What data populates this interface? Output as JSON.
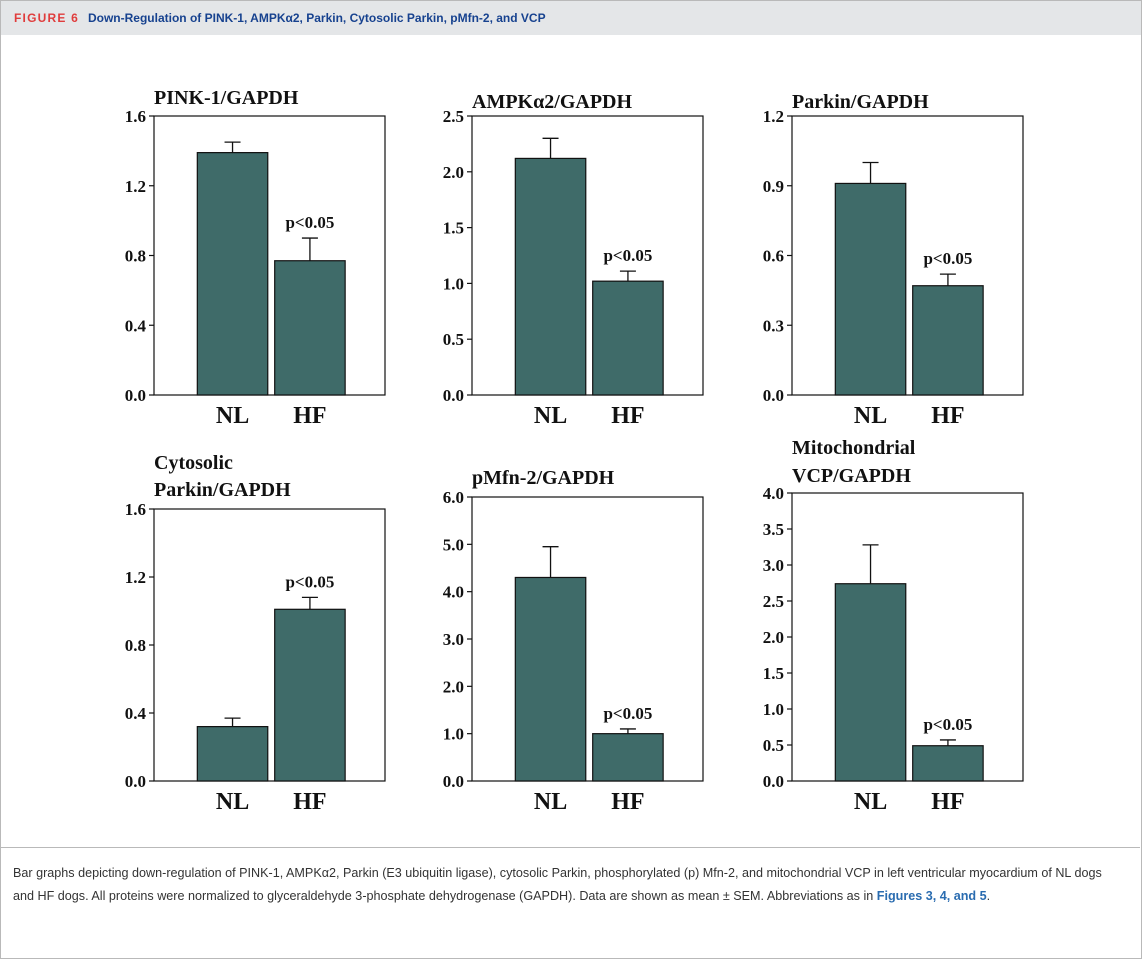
{
  "header": {
    "figure_label": "FIGURE 6",
    "title": "Down-Regulation of PINK-1, AMPKα2, Parkin, Cytosolic Parkin, pMfn-2, and VCP"
  },
  "colors": {
    "bar": "#3f6b69",
    "header_bg": "#e4e6e8",
    "label_red": "#e03c3c",
    "title_blue": "#17428f",
    "link_blue": "#2a6cb0"
  },
  "chart_data": [
    {
      "type": "bar",
      "title": [
        "PINK-1/GAPDH"
      ],
      "categories": [
        "NL",
        "HF"
      ],
      "values": [
        1.39,
        0.77
      ],
      "errors": [
        0.06,
        0.13
      ],
      "ylim": [
        0,
        1.6
      ],
      "yticks": [
        "0.0",
        "0.4",
        "0.8",
        "1.2",
        "1.6"
      ],
      "annotation": "p<0.05",
      "grid": false
    },
    {
      "type": "bar",
      "title": [
        "AMPKα2/GAPDH"
      ],
      "categories": [
        "NL",
        "HF"
      ],
      "values": [
        2.12,
        1.02
      ],
      "errors": [
        0.18,
        0.09
      ],
      "ylim": [
        0,
        2.5
      ],
      "yticks": [
        "0.0",
        "0.5",
        "1.0",
        "1.5",
        "2.0",
        "2.5"
      ],
      "annotation": "p<0.05",
      "grid": false
    },
    {
      "type": "bar",
      "title": [
        "Parkin/GAPDH"
      ],
      "categories": [
        "NL",
        "HF"
      ],
      "values": [
        0.91,
        0.47
      ],
      "errors": [
        0.09,
        0.05
      ],
      "ylim": [
        0,
        1.2
      ],
      "yticks": [
        "0.0",
        "0.3",
        "0.6",
        "0.9",
        "1.2"
      ],
      "annotation": "p<0.05",
      "grid": false
    },
    {
      "type": "bar",
      "title": [
        "Cytosolic",
        "Parkin/GAPDH"
      ],
      "categories": [
        "NL",
        "HF"
      ],
      "values": [
        0.32,
        1.01
      ],
      "errors": [
        0.05,
        0.07
      ],
      "ylim": [
        0,
        1.6
      ],
      "yticks": [
        "0.0",
        "0.4",
        "0.8",
        "1.2",
        "1.6"
      ],
      "annotation": "p<0.05",
      "grid": false
    },
    {
      "type": "bar",
      "title": [
        "pMfn-2/GAPDH"
      ],
      "categories": [
        "NL",
        "HF"
      ],
      "values": [
        4.3,
        1.0
      ],
      "errors": [
        0.65,
        0.1
      ],
      "ylim": [
        0,
        6.0
      ],
      "yticks": [
        "0.0",
        "1.0",
        "2.0",
        "3.0",
        "4.0",
        "5.0",
        "6.0"
      ],
      "annotation": "p<0.05",
      "grid": false
    },
    {
      "type": "bar",
      "title": [
        "Mitochondrial",
        "VCP/GAPDH"
      ],
      "categories": [
        "NL",
        "HF"
      ],
      "values": [
        2.74,
        0.49
      ],
      "errors": [
        0.54,
        0.08
      ],
      "ylim": [
        0,
        4.0
      ],
      "yticks": [
        "0.0",
        "0.5",
        "1.0",
        "1.5",
        "2.0",
        "2.5",
        "3.0",
        "3.5",
        "4.0"
      ],
      "annotation": "p<0.05",
      "grid": false
    }
  ],
  "caption": {
    "text": "Bar graphs depicting down-regulation of PINK-1, AMPKα2, Parkin (E3 ubiquitin ligase), cytosolic Parkin, phosphorylated (p) Mfn-2, and mitochondrial VCP in left ventricular myocardium of NL dogs and HF dogs. All proteins were normalized to glyceraldehyde 3-phosphate dehydrogenase (GAPDH). Data are shown as mean ± SEM. Abbreviations as in ",
    "link": "Figures 3, 4, and 5",
    "end": "."
  }
}
